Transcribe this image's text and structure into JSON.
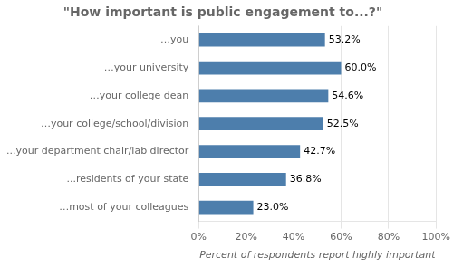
{
  "chart_data": {
    "type": "bar",
    "orientation": "horizontal",
    "title": "\"How important is public engagement to...?\"",
    "categories": [
      "…most of your colleagues",
      "...residents of your state",
      "...your department chair/lab director",
      "…your college/school/division",
      "…your college dean",
      "…your university",
      "…you"
    ],
    "values": [
      23.0,
      36.8,
      42.7,
      52.5,
      54.6,
      60.0,
      53.2
    ],
    "value_labels": [
      "23.0%",
      "36.8%",
      "42.7%",
      "52.5%",
      "54.6%",
      "60.0%",
      "53.2%"
    ],
    "data_labels": true,
    "color": "#4d7eac",
    "xlabel": "Percent of respondents report highly important",
    "xlim": [
      0,
      100
    ],
    "xticks": [
      {
        "value": 0,
        "label": "0%"
      },
      {
        "value": 20,
        "label": "20%"
      },
      {
        "value": 40,
        "label": "40%"
      },
      {
        "value": 60,
        "label": "60%"
      },
      {
        "value": 80,
        "label": "80%"
      },
      {
        "value": 100,
        "label": "100%"
      }
    ],
    "grid": true
  }
}
